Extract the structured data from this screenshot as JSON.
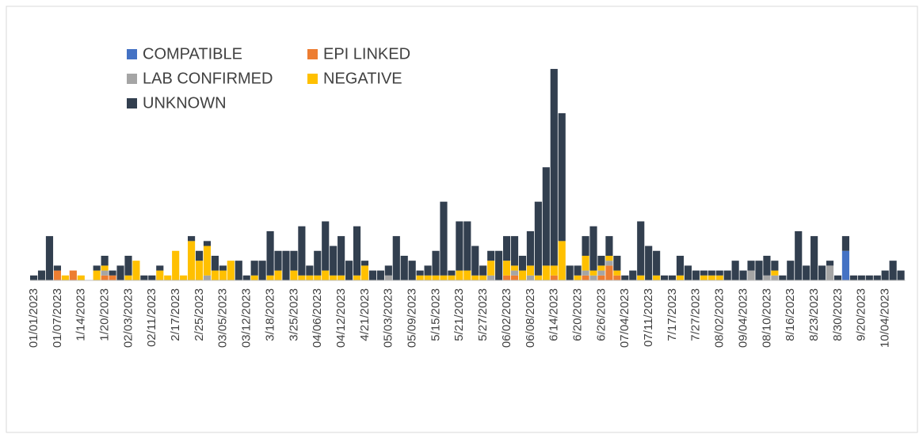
{
  "chart_data": {
    "type": "stacked_bar",
    "categories": [
      "01/01/2023",
      null,
      null,
      "01/07/2023",
      null,
      null,
      "1/14/2023",
      null,
      null,
      "1/20/2023",
      null,
      null,
      "02/03/2023",
      null,
      null,
      "02/11/2023",
      null,
      null,
      "2/17/2023",
      null,
      null,
      "2/25/2023",
      null,
      null,
      "03/05/2023",
      null,
      null,
      "03/12/2023",
      null,
      null,
      "3/18/2023",
      null,
      null,
      "3/25/2023",
      null,
      null,
      "04/06/2023",
      null,
      null,
      "04/12/2023",
      null,
      null,
      "4/21/2023",
      null,
      null,
      "05/03/2023",
      null,
      null,
      "05/09/2023",
      null,
      null,
      "5/15/2023",
      null,
      null,
      "5/21/2023",
      null,
      null,
      "5/27/2023",
      null,
      null,
      "06/02/2023",
      null,
      null,
      "06/08/2023",
      null,
      null,
      "6/14/2023",
      null,
      null,
      "6/20/2023",
      null,
      null,
      "6/26/2023",
      null,
      null,
      "07/04/2023",
      null,
      null,
      "07/11/2023",
      null,
      null,
      "7/17/2023",
      null,
      null,
      "7/27/2023",
      null,
      null,
      "08/02/2023",
      null,
      null,
      "09/04/2023",
      null,
      null,
      "08/10/2023",
      null,
      null,
      "8/16/2023",
      null,
      null,
      "8/23/2023",
      null,
      null,
      "8/30/2023",
      null,
      null,
      "9/20/2023",
      null,
      null,
      "10/04/2023",
      null,
      null
    ],
    "series": [
      {
        "name": "COMPATIBLE",
        "color": "#4472c4",
        "values": [
          0,
          0,
          0,
          0,
          0,
          0,
          0,
          0,
          0,
          0,
          0,
          0,
          0,
          0,
          0,
          0,
          0,
          0,
          0,
          0,
          0,
          0,
          0,
          0,
          0,
          0,
          0,
          0,
          0,
          0,
          0,
          0,
          0,
          0,
          0,
          0,
          0,
          0,
          0,
          0,
          0,
          0,
          0,
          0,
          0,
          0,
          0,
          0,
          0,
          0,
          0,
          0,
          0,
          0,
          0,
          0,
          0,
          0,
          0,
          0,
          0,
          0,
          0,
          0,
          0,
          0,
          0,
          0,
          0,
          0,
          0,
          0,
          0,
          0,
          0,
          0,
          0,
          0,
          0,
          0,
          0,
          0,
          0,
          0,
          0,
          0,
          0,
          0,
          0,
          0,
          0,
          0,
          0,
          0,
          0,
          0,
          0,
          0,
          0,
          0,
          0,
          0,
          0,
          6,
          0,
          0,
          0,
          0,
          0,
          0,
          0
        ]
      },
      {
        "name": "EPI LINKED",
        "color": "#ed7d31",
        "values": [
          0,
          0,
          0,
          2,
          0,
          2,
          0,
          0,
          0,
          1,
          1,
          0,
          0,
          0,
          0,
          0,
          0,
          0,
          0,
          0,
          0,
          0,
          0,
          0,
          0,
          0,
          0,
          0,
          0,
          0,
          0,
          0,
          0,
          0,
          0,
          0,
          0,
          0,
          0,
          0,
          0,
          0,
          0,
          0,
          0,
          0,
          0,
          0,
          0,
          0,
          0,
          0,
          0,
          0,
          0,
          0,
          0,
          0,
          0,
          0,
          1,
          1,
          0,
          0,
          0,
          0,
          1,
          0,
          0,
          0,
          1,
          0,
          1,
          3,
          1,
          0,
          0,
          0,
          0,
          0,
          0,
          0,
          0,
          0,
          0,
          0,
          0,
          0,
          0,
          0,
          0,
          0,
          0,
          0,
          0,
          0,
          0,
          0,
          0,
          0,
          0,
          0,
          0,
          0,
          0,
          0,
          0,
          0,
          0,
          0,
          0
        ]
      },
      {
        "name": "LAB CONFIRMED",
        "color": "#a5a5a5",
        "values": [
          0,
          0,
          0,
          0,
          0,
          0,
          0,
          0,
          0,
          1,
          0,
          0,
          0,
          0,
          0,
          0,
          0,
          0,
          0,
          0,
          0,
          0,
          1,
          0,
          0,
          0,
          0,
          0,
          0,
          0,
          0,
          0,
          0,
          0,
          0,
          0,
          0,
          0,
          0,
          0,
          0,
          0,
          0,
          0,
          0,
          1,
          0,
          0,
          0,
          0,
          0,
          0,
          0,
          0,
          0,
          0,
          0,
          0,
          1,
          0,
          0,
          1,
          0,
          1,
          0,
          0,
          0,
          0,
          0,
          0,
          1,
          1,
          1,
          1,
          0,
          0,
          0,
          0,
          0,
          0,
          0,
          0,
          0,
          0,
          0,
          0,
          0,
          0,
          0,
          0,
          0,
          2,
          0,
          1,
          1,
          0,
          0,
          0,
          0,
          0,
          0,
          3,
          0,
          0,
          0,
          0,
          0,
          0,
          0,
          0,
          0
        ]
      },
      {
        "name": "NEGATIVE",
        "color": "#ffc000",
        "values": [
          0,
          0,
          0,
          0,
          1,
          0,
          1,
          0,
          2,
          1,
          0,
          0,
          1,
          4,
          0,
          0,
          2,
          1,
          6,
          1,
          8,
          4,
          6,
          2,
          2,
          4,
          0,
          0,
          1,
          0,
          1,
          2,
          0,
          2,
          1,
          1,
          1,
          2,
          1,
          1,
          0,
          1,
          3,
          0,
          0,
          0,
          0,
          0,
          0,
          1,
          1,
          1,
          1,
          1,
          2,
          2,
          1,
          1,
          3,
          0,
          3,
          1,
          2,
          2,
          1,
          3,
          2,
          8,
          0,
          1,
          3,
          1,
          1,
          1,
          1,
          0,
          0,
          1,
          0,
          1,
          0,
          0,
          1,
          0,
          0,
          1,
          1,
          1,
          0,
          0,
          0,
          0,
          0,
          0,
          1,
          0,
          0,
          0,
          0,
          0,
          0,
          0,
          0,
          0,
          0,
          0,
          0,
          0,
          0,
          0,
          0
        ]
      },
      {
        "name": "UNKNOWN",
        "color": "#323f4f",
        "values": [
          1,
          2,
          9,
          1,
          0,
          0,
          0,
          0,
          1,
          2,
          1,
          3,
          4,
          0,
          1,
          1,
          1,
          0,
          0,
          0,
          1,
          2,
          1,
          3,
          1,
          0,
          4,
          1,
          3,
          4,
          9,
          4,
          6,
          4,
          10,
          2,
          5,
          10,
          6,
          8,
          4,
          10,
          1,
          2,
          2,
          2,
          9,
          5,
          4,
          1,
          2,
          5,
          15,
          1,
          10,
          10,
          6,
          2,
          2,
          6,
          5,
          6,
          3,
          7,
          15,
          20,
          40,
          26,
          3,
          2,
          4,
          9,
          2,
          4,
          3,
          1,
          2,
          11,
          7,
          5,
          1,
          1,
          4,
          3,
          2,
          1,
          1,
          1,
          2,
          4,
          2,
          2,
          4,
          4,
          2,
          1,
          4,
          10,
          3,
          9,
          3,
          1,
          1,
          3,
          1,
          1,
          1,
          1,
          2,
          4,
          2
        ]
      }
    ],
    "ylim": [
      0,
      48
    ],
    "legend": "top-left"
  }
}
